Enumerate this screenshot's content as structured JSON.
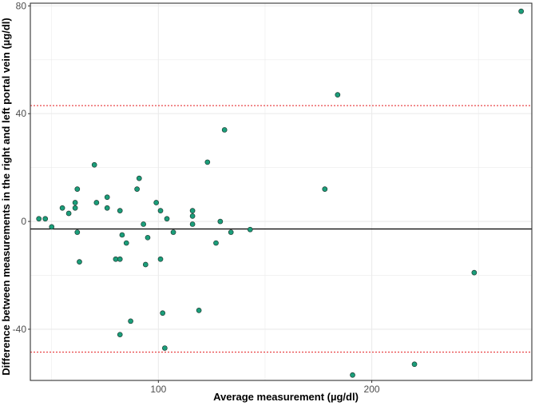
{
  "chart_data": {
    "type": "scatter",
    "title": "",
    "xlabel": "Average measurement (µg/dl)",
    "ylabel": "Difference between measurements in the right and left portal vein (µg/dl)",
    "xlim": [
      40,
      275
    ],
    "ylim": [
      -59,
      81
    ],
    "x_ticks": [
      100,
      200
    ],
    "y_ticks": [
      -40,
      0,
      40,
      80
    ],
    "grid": true,
    "legend": "none",
    "mean_difference": -2.8,
    "upper_limit": 43,
    "lower_limit": -48.5,
    "points": [
      {
        "x": 44,
        "y": 1
      },
      {
        "x": 47,
        "y": 1
      },
      {
        "x": 50,
        "y": -2
      },
      {
        "x": 55,
        "y": 5
      },
      {
        "x": 58,
        "y": 3
      },
      {
        "x": 61,
        "y": 5
      },
      {
        "x": 61,
        "y": 7
      },
      {
        "x": 62,
        "y": 12
      },
      {
        "x": 62,
        "y": -4
      },
      {
        "x": 63,
        "y": -15
      },
      {
        "x": 70,
        "y": 21
      },
      {
        "x": 71,
        "y": 7
      },
      {
        "x": 76,
        "y": 5
      },
      {
        "x": 76,
        "y": 9
      },
      {
        "x": 80,
        "y": -14
      },
      {
        "x": 82,
        "y": 4
      },
      {
        "x": 82,
        "y": -14
      },
      {
        "x": 82,
        "y": -42
      },
      {
        "x": 83,
        "y": -5
      },
      {
        "x": 85,
        "y": -8
      },
      {
        "x": 87,
        "y": -37
      },
      {
        "x": 90,
        "y": 12
      },
      {
        "x": 91,
        "y": 16
      },
      {
        "x": 93,
        "y": -1
      },
      {
        "x": 94,
        "y": -16
      },
      {
        "x": 95,
        "y": -6
      },
      {
        "x": 99,
        "y": 7
      },
      {
        "x": 101,
        "y": 4
      },
      {
        "x": 101,
        "y": -14
      },
      {
        "x": 102,
        "y": -34
      },
      {
        "x": 103,
        "y": -47
      },
      {
        "x": 104,
        "y": 1
      },
      {
        "x": 107,
        "y": -4
      },
      {
        "x": 116,
        "y": 4
      },
      {
        "x": 116,
        "y": 2
      },
      {
        "x": 116,
        "y": -1
      },
      {
        "x": 119,
        "y": -33
      },
      {
        "x": 123,
        "y": 22
      },
      {
        "x": 127,
        "y": -8
      },
      {
        "x": 129,
        "y": 0
      },
      {
        "x": 131,
        "y": 34
      },
      {
        "x": 134,
        "y": -4
      },
      {
        "x": 143,
        "y": -3
      },
      {
        "x": 178,
        "y": 12
      },
      {
        "x": 184,
        "y": 47
      },
      {
        "x": 191,
        "y": -57
      },
      {
        "x": 220,
        "y": -53
      },
      {
        "x": 248,
        "y": -19
      },
      {
        "x": 270,
        "y": 78
      }
    ],
    "colors": {
      "point_fill": "#1a9e7a",
      "point_stroke": "#1f3d33",
      "mean_line": "#000000",
      "limit_line": "#e31a1c",
      "grid": "#ebebeb",
      "panel_border": "#333333"
    }
  }
}
